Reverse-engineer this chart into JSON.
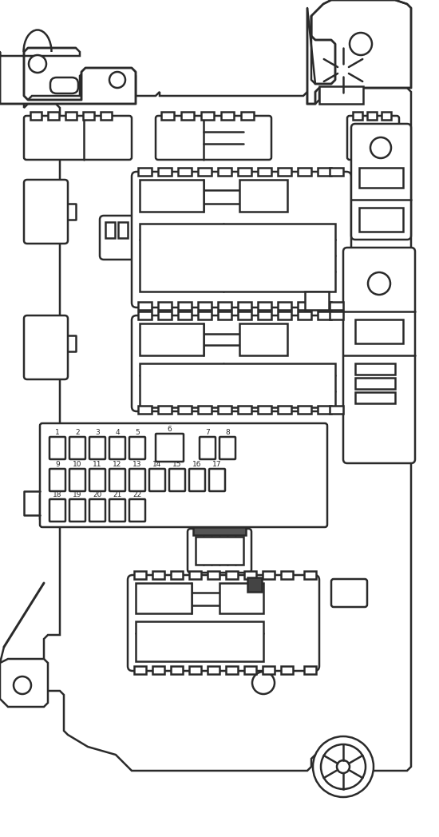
{
  "bg_color": "#ffffff",
  "line_color": "#2a2a2a",
  "line_width": 1.8,
  "fuse_labels_row1": [
    "1",
    "2",
    "3",
    "4",
    "5",
    "6",
    "7",
    "8"
  ],
  "fuse_labels_row2": [
    "9",
    "10",
    "11",
    "12",
    "13",
    "14",
    "15",
    "16",
    "17"
  ],
  "fuse_labels_row3": [
    "18",
    "19",
    "20",
    "21",
    "22"
  ]
}
